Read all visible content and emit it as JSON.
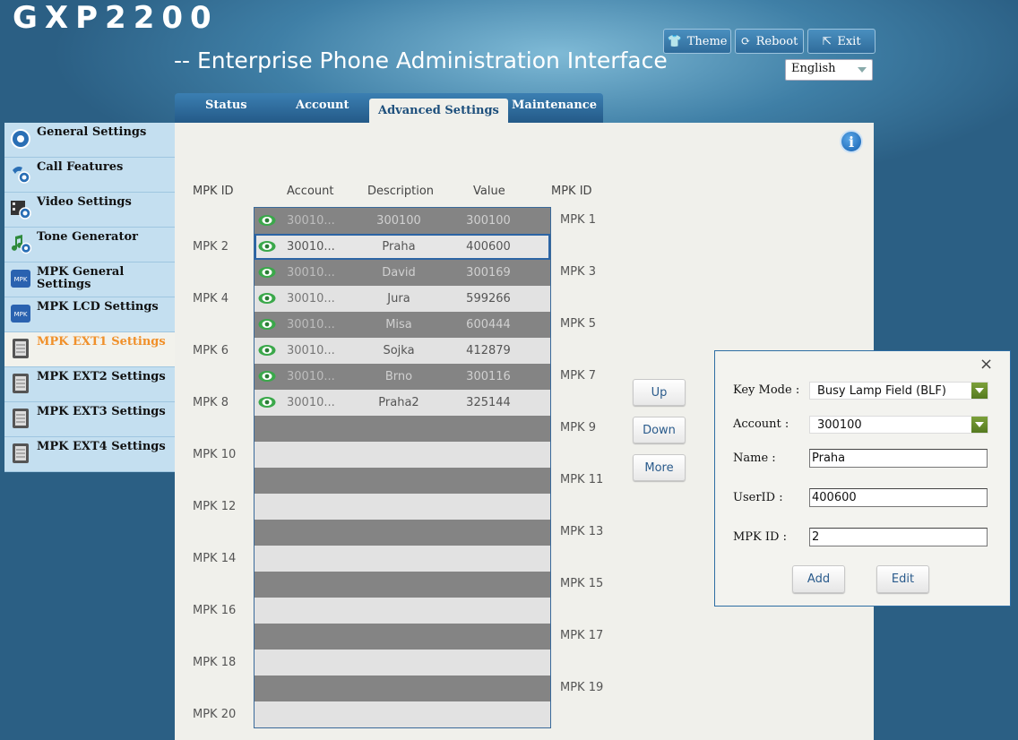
{
  "header": {
    "logo": "GXP2200",
    "subtitle": "-- Enterprise Phone Administration Interface",
    "buttons": {
      "theme": "Theme",
      "reboot": "Reboot",
      "exit": "Exit"
    },
    "language": "English"
  },
  "tabs": [
    {
      "label": "Status",
      "active": false
    },
    {
      "label": "Account",
      "active": false
    },
    {
      "label": "Advanced Settings",
      "active": true
    },
    {
      "label": "Maintenance",
      "active": false
    }
  ],
  "sidebar": {
    "items": [
      {
        "label": "General Settings",
        "icon": "gear-icon"
      },
      {
        "label": "Call Features",
        "icon": "phone-gear-icon"
      },
      {
        "label": "Video Settings",
        "icon": "film-gear-icon"
      },
      {
        "label": "Tone Generator",
        "icon": "music-note-gear-icon"
      },
      {
        "label": "MPK General Settings",
        "icon": "mpk-icon"
      },
      {
        "label": "MPK LCD Settings",
        "icon": "mpk-icon"
      },
      {
        "label": "MPK EXT1 Settings",
        "icon": "expansion-module-icon",
        "active": true
      },
      {
        "label": "MPK EXT2 Settings",
        "icon": "expansion-module-icon"
      },
      {
        "label": "MPK EXT3 Settings",
        "icon": "expansion-module-icon"
      },
      {
        "label": "MPK EXT4 Settings",
        "icon": "expansion-module-icon"
      }
    ]
  },
  "table": {
    "headers": {
      "left_id": "MPK ID",
      "account": "Account",
      "description": "Description",
      "value": "Value",
      "right_id": "MPK ID"
    },
    "left_labels": [
      "MPK 2",
      "MPK 4",
      "MPK 6",
      "MPK 8",
      "MPK 10",
      "MPK 12",
      "MPK 14",
      "MPK 16",
      "MPK 18",
      "MPK 20"
    ],
    "right_labels": [
      "MPK 1",
      "MPK 3",
      "MPK 5",
      "MPK 7",
      "MPK 9",
      "MPK 11",
      "MPK 13",
      "MPK 15",
      "MPK 17",
      "MPK 19"
    ],
    "rows": [
      {
        "account": "30010...",
        "description": "300100",
        "value": "300100"
      },
      {
        "account": "30010...",
        "description": "Praha",
        "value": "400600",
        "selected": true
      },
      {
        "account": "30010...",
        "description": "David",
        "value": "300169"
      },
      {
        "account": "30010...",
        "description": "Jura",
        "value": "599266"
      },
      {
        "account": "30010...",
        "description": "Misa",
        "value": "600444"
      },
      {
        "account": "30010...",
        "description": "Sojka",
        "value": "412879"
      },
      {
        "account": "30010...",
        "description": "Brno",
        "value": "300116"
      },
      {
        "account": "30010...",
        "description": "Praha2",
        "value": "325144"
      }
    ],
    "total_rows": 20
  },
  "side_buttons": {
    "up": "Up",
    "down": "Down",
    "more": "More"
  },
  "dialog": {
    "close": "×",
    "key_mode_label": "Key Mode :",
    "key_mode_value": "Busy Lamp Field (BLF)",
    "account_label": "Account :",
    "account_value": "300100",
    "name_label": "Name :",
    "name_value": "Praha",
    "userid_label": "UserID :",
    "userid_value": "400600",
    "mpkid_label": "MPK ID :",
    "mpkid_value": "2",
    "add": "Add",
    "edit": "Edit"
  },
  "info_icon": "i"
}
